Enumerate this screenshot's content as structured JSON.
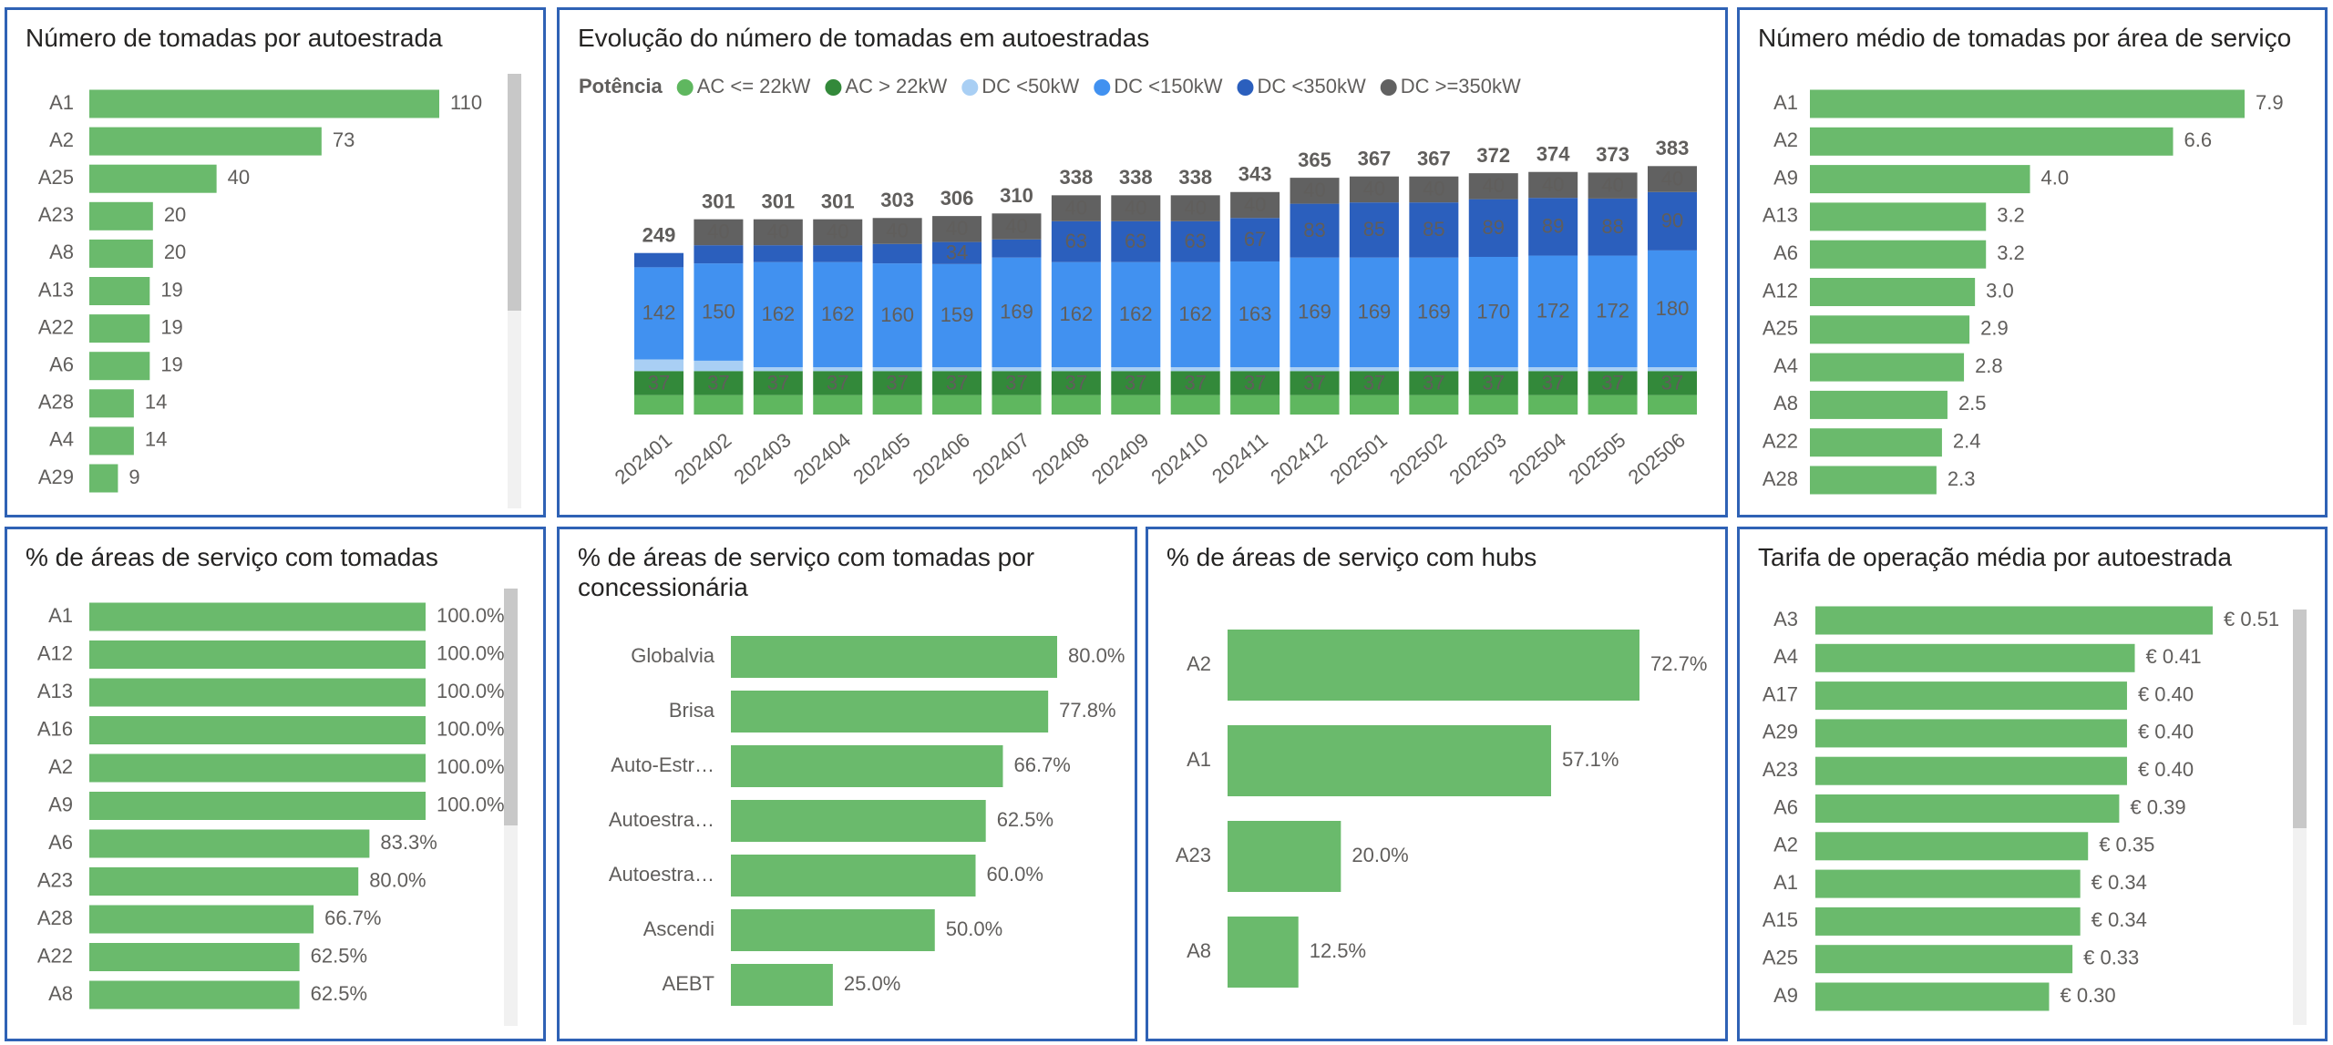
{
  "chart_data": [
    {
      "type": "hbar",
      "title": "Número de tomadas por autoestrada",
      "color": "#6aba6c",
      "categories": [
        "A1",
        "A2",
        "A25",
        "A23",
        "A8",
        "A13",
        "A22",
        "A6",
        "A28",
        "A4",
        "A29"
      ],
      "values": [
        110,
        73,
        40,
        20,
        20,
        19,
        19,
        19,
        14,
        14,
        9
      ]
    },
    {
      "type": "stacked_bar",
      "title": "Evolução do número de tomadas em autoestradas",
      "legend_title": "Potência",
      "categories": [
        "202401",
        "202402",
        "202403",
        "202404",
        "202405",
        "202406",
        "202407",
        "202408",
        "202409",
        "202410",
        "202411",
        "202412",
        "202501",
        "202502",
        "202503",
        "202504",
        "202505",
        "202506"
      ],
      "series": [
        {
          "name": "AC <= 22kW",
          "color": "#5fb75f",
          "values": [
            30,
            30,
            30,
            30,
            30,
            30,
            30,
            30,
            30,
            30,
            30,
            30,
            30,
            30,
            30,
            30,
            30,
            30
          ]
        },
        {
          "name": "AC > 22kW",
          "color": "#33893a",
          "values": [
            37,
            37,
            37,
            37,
            37,
            37,
            37,
            37,
            37,
            37,
            37,
            37,
            37,
            37,
            37,
            37,
            37,
            37
          ]
        },
        {
          "name": "DC <50kW",
          "color": "#a9cff4",
          "values": [
            18,
            16,
            6,
            6,
            6,
            6,
            6,
            6,
            6,
            6,
            6,
            6,
            6,
            6,
            6,
            6,
            6,
            6
          ]
        },
        {
          "name": "DC <150kW",
          "color": "#4191f0",
          "values": [
            142,
            150,
            162,
            162,
            160,
            159,
            169,
            162,
            162,
            162,
            163,
            169,
            169,
            169,
            170,
            172,
            172,
            180
          ]
        },
        {
          "name": "DC <350kW",
          "color": "#2b5fbd",
          "values": [
            22,
            28,
            26,
            26,
            30,
            34,
            28,
            63,
            63,
            63,
            67,
            83,
            85,
            85,
            89,
            89,
            88,
            90
          ]
        },
        {
          "name": "DC >=350kW",
          "color": "#616161",
          "values": [
            0,
            40,
            40,
            40,
            40,
            40,
            40,
            40,
            40,
            40,
            40,
            40,
            40,
            40,
            40,
            40,
            40,
            40
          ]
        }
      ],
      "totals": [
        249,
        301,
        301,
        301,
        303,
        306,
        310,
        338,
        338,
        338,
        343,
        365,
        367,
        367,
        372,
        374,
        373,
        383
      ]
    },
    {
      "type": "hbar",
      "title": "Número médio de tomadas por área de serviço",
      "color": "#6aba6c",
      "categories": [
        "A1",
        "A2",
        "A9",
        "A13",
        "A6",
        "A12",
        "A25",
        "A4",
        "A8",
        "A22",
        "A28"
      ],
      "values": [
        7.9,
        6.6,
        4.0,
        3.2,
        3.2,
        3.0,
        2.9,
        2.8,
        2.5,
        2.4,
        2.3
      ],
      "value_labels": [
        "7.9",
        "6.6",
        "4.0",
        "3.2",
        "3.2",
        "3.0",
        "2.9",
        "2.8",
        "2.5",
        "2.4",
        "2.3"
      ]
    },
    {
      "type": "hbar",
      "title": "% de áreas de serviço com tomadas",
      "color": "#6aba6c",
      "categories": [
        "A1",
        "A12",
        "A13",
        "A16",
        "A2",
        "A9",
        "A6",
        "A23",
        "A28",
        "A22",
        "A8"
      ],
      "values": [
        100,
        100,
        100,
        100,
        100,
        100,
        83.3,
        80,
        66.7,
        62.5,
        62.5
      ],
      "value_labels": [
        "100.0%",
        "100.0%",
        "100.0%",
        "100.0%",
        "100.0%",
        "100.0%",
        "83.3%",
        "80.0%",
        "66.7%",
        "62.5%",
        "62.5%"
      ]
    },
    {
      "type": "hbar",
      "title": "% de áreas de serviço com tomadas por concessionária",
      "color": "#6aba6c",
      "categories": [
        "Globalvia",
        "Brisa",
        "Auto-Estr…",
        "Autoestra…",
        "Autoestra…",
        "Ascendi",
        "AEBT"
      ],
      "values": [
        80,
        77.8,
        66.7,
        62.5,
        60,
        50,
        25
      ],
      "value_labels": [
        "80.0%",
        "77.8%",
        "66.7%",
        "62.5%",
        "60.0%",
        "50.0%",
        "25.0%"
      ]
    },
    {
      "type": "hbar",
      "title": "% de áreas de serviço com hubs",
      "color": "#6aba6c",
      "categories": [
        "A2",
        "A1",
        "A23",
        "A8"
      ],
      "values": [
        72.7,
        57.1,
        20,
        12.5
      ],
      "value_labels": [
        "72.7%",
        "57.1%",
        "20.0%",
        "12.5%"
      ]
    },
    {
      "type": "hbar",
      "title": "Tarifa de operação média por autoestrada",
      "color": "#6aba6c",
      "categories": [
        "A3",
        "A4",
        "A17",
        "A29",
        "A23",
        "A6",
        "A2",
        "A1",
        "A15",
        "A25",
        "A9"
      ],
      "values": [
        0.51,
        0.41,
        0.4,
        0.4,
        0.4,
        0.39,
        0.35,
        0.34,
        0.34,
        0.33,
        0.3
      ],
      "value_labels": [
        "€ 0.51",
        "€ 0.41",
        "€ 0.40",
        "€ 0.40",
        "€ 0.40",
        "€ 0.39",
        "€ 0.35",
        "€ 0.34",
        "€ 0.34",
        "€ 0.33",
        "€ 0.30"
      ]
    }
  ]
}
